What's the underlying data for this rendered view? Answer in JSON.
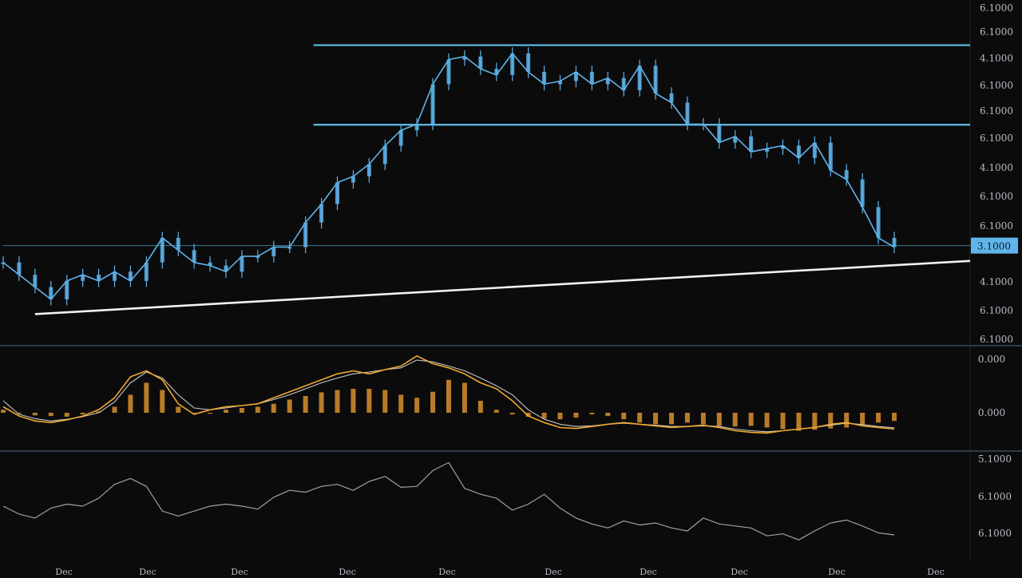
{
  "chart_data": [
    {
      "type": "line",
      "panel": "price",
      "ylim": [
        0,
        100
      ],
      "axis_labels": [
        "6.1000",
        "6.1000",
        "4.1000",
        "6.1000",
        "6.1000",
        "6.1000",
        "4.1000",
        "6.1000",
        "6.1000",
        "4.1000",
        "6.1000",
        "6.1000"
      ],
      "price_tag": "3.1000",
      "x": [
        0,
        2,
        4,
        6,
        8,
        10,
        12,
        14,
        16,
        18,
        20,
        22,
        24,
        26,
        28,
        30,
        32,
        34,
        36,
        38,
        40,
        42,
        44,
        46,
        48,
        50,
        52,
        54,
        56,
        58,
        60,
        62,
        64,
        66,
        68,
        70,
        72,
        74,
        76,
        78,
        80,
        82,
        84,
        86,
        88,
        90,
        92,
        94,
        96,
        98,
        100,
        102,
        104,
        106,
        108,
        110,
        112
      ],
      "values": [
        25,
        21,
        17,
        13,
        19,
        21,
        19,
        22,
        19,
        25,
        33,
        29,
        25,
        24,
        22,
        27,
        27,
        30,
        30,
        38,
        44,
        51,
        53,
        57,
        63,
        68,
        70,
        83,
        91,
        92,
        88,
        86,
        93,
        87,
        83,
        84,
        87,
        83,
        85,
        81,
        89,
        80,
        77,
        70,
        70,
        64,
        66,
        61,
        62,
        63,
        59,
        64,
        55,
        52,
        43,
        33,
        30
      ],
      "guide_lines": [
        {
          "level": 95.7,
          "x_range": [
            39,
            125
          ]
        },
        {
          "level": 69.8,
          "x_range": [
            39,
            125
          ]
        },
        {
          "level": 30.5,
          "x_range": [
            0,
            125
          ]
        }
      ],
      "trend_line": {
        "start": [
          4,
          8.2
        ],
        "end": [
          125,
          25.5
        ]
      }
    },
    {
      "type": "bar",
      "panel": "oscillator",
      "ylim": [
        -100,
        100
      ],
      "axis_labels": [
        "0.000",
        "0.000"
      ],
      "x": [
        0,
        2,
        4,
        6,
        8,
        10,
        12,
        14,
        16,
        18,
        20,
        22,
        24,
        26,
        28,
        30,
        32,
        34,
        36,
        38,
        40,
        42,
        44,
        46,
        48,
        50,
        52,
        54,
        56,
        58,
        60,
        62,
        64,
        66,
        68,
        70,
        72,
        74,
        76,
        78,
        80,
        82,
        84,
        86,
        88,
        90,
        92,
        94,
        96,
        98,
        100,
        102,
        104,
        106,
        108,
        110,
        112
      ],
      "histogram": [
        5,
        -3,
        -8,
        -10,
        -12,
        -5,
        2,
        10,
        30,
        50,
        38,
        10,
        0,
        -3,
        5,
        8,
        10,
        15,
        22,
        28,
        34,
        38,
        40,
        40,
        38,
        30,
        25,
        35,
        55,
        50,
        20,
        5,
        -5,
        -12,
        -18,
        -20,
        -15,
        -5,
        -10,
        -20,
        -30,
        -35,
        -35,
        -30,
        -35,
        -40,
        -42,
        -40,
        -45,
        -50,
        -55,
        -52,
        -48,
        -45,
        -38,
        -30,
        -25
      ],
      "signal_a": [
        10,
        -10,
        -25,
        -30,
        -22,
        -10,
        5,
        25,
        60,
        70,
        55,
        15,
        -5,
        5,
        10,
        12,
        15,
        25,
        35,
        45,
        55,
        65,
        70,
        65,
        72,
        78,
        95,
        82,
        75,
        65,
        50,
        40,
        20,
        -10,
        -30,
        -45,
        -48,
        -42,
        -35,
        -30,
        -35,
        -40,
        -45,
        -42,
        -38,
        -45,
        -55,
        -60,
        -62,
        -55,
        -50,
        -45,
        -35,
        -30,
        -40,
        -45,
        -50
      ],
      "signal_b": [
        20,
        -5,
        -18,
        -25,
        -20,
        -12,
        0,
        18,
        50,
        68,
        58,
        30,
        8,
        5,
        8,
        12,
        15,
        22,
        30,
        40,
        50,
        58,
        65,
        68,
        72,
        75,
        88,
        85,
        78,
        70,
        58,
        45,
        30,
        5,
        -20,
        -35,
        -42,
        -40,
        -35,
        -32,
        -35,
        -38,
        -42,
        -42,
        -40,
        -42,
        -50,
        -55,
        -58,
        -55,
        -50,
        -45,
        -38,
        -32,
        -36,
        -42,
        -46
      ]
    },
    {
      "type": "line",
      "panel": "lower",
      "ylim": [
        0,
        100
      ],
      "axis_labels": [
        "5.1000",
        "6.1000",
        "6.1000"
      ],
      "x": [
        0,
        2,
        4,
        6,
        8,
        10,
        12,
        14,
        16,
        18,
        20,
        22,
        24,
        26,
        28,
        30,
        32,
        34,
        36,
        38,
        40,
        42,
        44,
        46,
        48,
        50,
        52,
        54,
        56,
        58,
        60,
        62,
        64,
        66,
        68,
        70,
        72,
        74,
        76,
        78,
        80,
        82,
        84,
        86,
        88,
        90,
        92,
        94,
        96,
        98,
        100,
        102,
        104,
        106,
        108,
        110,
        112
      ],
      "values": [
        50,
        42,
        38,
        48,
        52,
        50,
        58,
        72,
        78,
        70,
        45,
        40,
        45,
        50,
        52,
        50,
        47,
        59,
        66,
        64,
        70,
        72,
        66,
        75,
        80,
        69,
        70,
        86,
        94,
        68,
        62,
        58,
        46,
        52,
        62,
        48,
        38,
        32,
        28,
        35,
        31,
        33,
        28,
        25,
        38,
        32,
        30,
        28,
        20,
        22,
        16,
        25,
        33,
        36,
        30,
        23,
        21
      ],
      "x_tick_labels": [
        "Dec",
        "Dec",
        "Dec",
        "Dec",
        "Dec",
        "Dec",
        "Dec",
        "Dec",
        "Dec",
        "Dec",
        "Dec"
      ]
    }
  ],
  "colors": {
    "background": "#0b0b0c",
    "price": "#5fb4ea",
    "guide": "#62bde8",
    "trend": "#f2f2f2",
    "histogram": "#d7902e",
    "signal_a": "#f0a830",
    "signal_b": "#c8c8c8",
    "lower": "#a0a0a0",
    "axis_text": "#b8bcc4",
    "divider": "#3a4a5c",
    "tag_bg": "#5fb4ea",
    "tag_text": "#0b1a2a"
  }
}
